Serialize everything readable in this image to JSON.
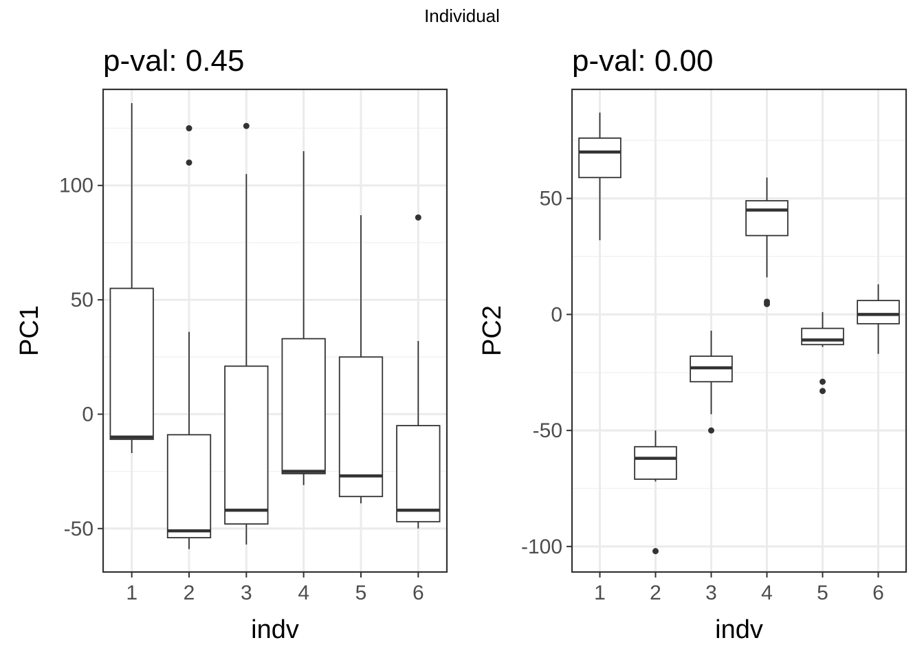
{
  "figure_title": "Individual",
  "chart_data": [
    {
      "type": "box",
      "title": "p-val: 0.45",
      "xlabel": "indv",
      "ylabel": "PC1",
      "categories": [
        "1",
        "2",
        "3",
        "4",
        "5",
        "6"
      ],
      "yticks": [
        -50,
        0,
        50,
        100
      ],
      "ytick_labels": [
        "-50",
        "0",
        "50",
        "100"
      ],
      "ylim": [
        -69,
        142
      ],
      "grid": true,
      "boxes": [
        {
          "category": "1",
          "whisker_low": -17,
          "q1": -11,
          "median": -10,
          "q3": 55,
          "whisker_high": 136,
          "outliers": []
        },
        {
          "category": "2",
          "whisker_low": -59,
          "q1": -54,
          "median": -51,
          "q3": -9,
          "whisker_high": 36,
          "outliers": [
            110,
            125
          ]
        },
        {
          "category": "3",
          "whisker_low": -57,
          "q1": -48,
          "median": -42,
          "q3": 21,
          "whisker_high": 105,
          "outliers": [
            126
          ]
        },
        {
          "category": "4",
          "whisker_low": -31,
          "q1": -26,
          "median": -25,
          "q3": 33,
          "whisker_high": 115,
          "outliers": []
        },
        {
          "category": "5",
          "whisker_low": -39,
          "q1": -36,
          "median": -27,
          "q3": 25,
          "whisker_high": 87,
          "outliers": []
        },
        {
          "category": "6",
          "whisker_low": -50,
          "q1": -47,
          "median": -42,
          "q3": -5,
          "whisker_high": 32,
          "outliers": [
            86
          ]
        }
      ]
    },
    {
      "type": "box",
      "title": "p-val: 0.00",
      "xlabel": "indv",
      "ylabel": "PC2",
      "categories": [
        "1",
        "2",
        "3",
        "4",
        "5",
        "6"
      ],
      "yticks": [
        -100,
        -50,
        0,
        50
      ],
      "ytick_labels": [
        "-100",
        "-50",
        "0",
        "50"
      ],
      "ylim": [
        -111,
        97
      ],
      "grid": true,
      "boxes": [
        {
          "category": "1",
          "whisker_low": 32,
          "q1": 59,
          "median": 70,
          "q3": 76,
          "whisker_high": 87,
          "outliers": []
        },
        {
          "category": "2",
          "whisker_low": -72,
          "q1": -71,
          "median": -62,
          "q3": -57,
          "whisker_high": -50,
          "outliers": [
            -102
          ]
        },
        {
          "category": "3",
          "whisker_low": -43,
          "q1": -29,
          "median": -23,
          "q3": -18,
          "whisker_high": -7,
          "outliers": [
            -50
          ]
        },
        {
          "category": "4",
          "whisker_low": 16,
          "q1": 34,
          "median": 45,
          "q3": 49,
          "whisker_high": 59,
          "outliers": [
            5.5,
            4.5
          ]
        },
        {
          "category": "5",
          "whisker_low": -14,
          "q1": -13,
          "median": -11,
          "q3": -6,
          "whisker_high": 1,
          "outliers": [
            -29,
            -33
          ]
        },
        {
          "category": "6",
          "whisker_low": -17,
          "q1": -4,
          "median": 0,
          "q3": 6,
          "whisker_high": 13,
          "outliers": []
        }
      ]
    }
  ]
}
